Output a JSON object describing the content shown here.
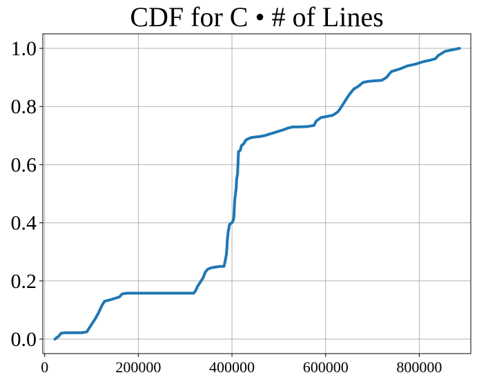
{
  "chart_data": {
    "type": "line",
    "title": "CDF for C • # of Lines",
    "xlabel": "",
    "ylabel": "",
    "xlim": [
      -4000,
      910000
    ],
    "ylim": [
      -0.05,
      1.05
    ],
    "x_ticks": [
      0,
      200000,
      400000,
      600000,
      800000
    ],
    "x_tick_labels": [
      "0",
      "200000",
      "400000",
      "600000",
      "800000"
    ],
    "y_ticks": [
      0.0,
      0.2,
      0.4,
      0.6,
      0.8,
      1.0
    ],
    "y_tick_labels": [
      "0.0",
      "0.2",
      "0.4",
      "0.6",
      "0.8",
      "1.0"
    ],
    "grid": true,
    "series": [
      {
        "color": "#1f77b4",
        "x": [
          22000,
          30000,
          35000,
          45000,
          60000,
          80000,
          90000,
          100000,
          108000,
          115000,
          122000,
          128000,
          140000,
          150000,
          160000,
          165000,
          175000,
          200000,
          250000,
          300000,
          318000,
          322000,
          326000,
          332000,
          338000,
          343000,
          348000,
          355000,
          365000,
          375000,
          383000,
          385000,
          388000,
          389000,
          390000,
          392000,
          395000,
          400000,
          403000,
          404000,
          406000,
          409000,
          410000,
          412000,
          414000,
          418000,
          420000,
          425000,
          430000,
          440000,
          450000,
          460000,
          470000,
          480000,
          490000,
          500000,
          510000,
          520000,
          530000,
          545000,
          560000,
          575000,
          580000,
          590000,
          600000,
          615000,
          625000,
          630000,
          640000,
          650000,
          660000,
          670000,
          680000,
          690000,
          700000,
          720000,
          730000,
          740000,
          760000,
          775000,
          790000,
          810000,
          825000,
          835000,
          840000,
          855000,
          870000,
          886000
        ],
        "y": [
          0.0,
          0.01,
          0.02,
          0.022,
          0.022,
          0.022,
          0.025,
          0.05,
          0.07,
          0.09,
          0.115,
          0.13,
          0.135,
          0.14,
          0.145,
          0.155,
          0.158,
          0.158,
          0.158,
          0.158,
          0.158,
          0.165,
          0.18,
          0.195,
          0.21,
          0.23,
          0.24,
          0.245,
          0.248,
          0.25,
          0.25,
          0.265,
          0.29,
          0.31,
          0.34,
          0.37,
          0.395,
          0.4,
          0.41,
          0.42,
          0.48,
          0.52,
          0.55,
          0.57,
          0.645,
          0.65,
          0.665,
          0.672,
          0.685,
          0.693,
          0.695,
          0.697,
          0.7,
          0.705,
          0.71,
          0.715,
          0.72,
          0.726,
          0.73,
          0.73,
          0.731,
          0.735,
          0.75,
          0.762,
          0.765,
          0.77,
          0.78,
          0.79,
          0.815,
          0.84,
          0.86,
          0.87,
          0.883,
          0.886,
          0.888,
          0.89,
          0.9,
          0.92,
          0.93,
          0.94,
          0.945,
          0.955,
          0.96,
          0.965,
          0.975,
          0.99,
          0.995,
          1.0
        ]
      }
    ]
  }
}
